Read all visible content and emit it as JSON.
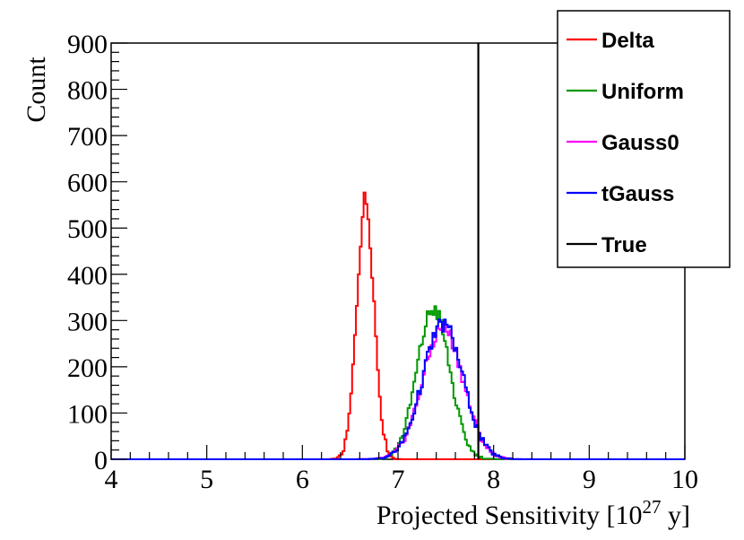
{
  "chart_data": {
    "type": "histogram",
    "title": "",
    "xlabel": "Projected Sensitivity [10",
    "xlabel_exp": "27",
    "xlabel_unit": " y]",
    "ylabel": "Count",
    "xlim": [
      4,
      10
    ],
    "ylim": [
      0,
      900
    ],
    "x_ticks": [
      4,
      5,
      6,
      7,
      8,
      9,
      10
    ],
    "y_ticks": [
      0,
      100,
      200,
      300,
      400,
      500,
      600,
      700,
      800,
      900
    ],
    "grid": false,
    "legend_position": "top-right",
    "true_value": 7.84,
    "series": [
      {
        "name": "Delta",
        "color": "#ff0000",
        "mean": 6.66,
        "sigma": 0.09,
        "peak": 560
      },
      {
        "name": "Uniform",
        "color": "#009900",
        "mean": 7.37,
        "sigma": 0.17,
        "peak": 325
      },
      {
        "name": "Gauss0",
        "color": "#ff00ff",
        "mean": 7.47,
        "sigma": 0.21,
        "peak": 285
      },
      {
        "name": "tGauss",
        "color": "#0000ff",
        "mean": 7.47,
        "sigma": 0.21,
        "peak": 292
      }
    ],
    "true_line": {
      "name": "True",
      "color": "#000000"
    }
  }
}
